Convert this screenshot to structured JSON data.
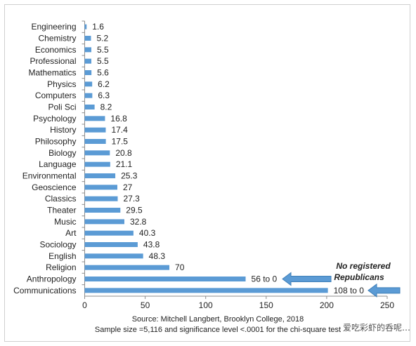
{
  "chart_data": {
    "type": "bar",
    "orientation": "horizontal",
    "categories": [
      "Engineering",
      "Chemistry",
      "Economics",
      "Professional",
      "Mathematics",
      "Physics",
      "Computers",
      "Poli Sci",
      "Psychology",
      "History",
      "Philosophy",
      "Biology",
      "Language",
      "Environmental",
      "Geoscience",
      "Classics",
      "Theater",
      "Music",
      "Art",
      "Sociology",
      "English",
      "Religion",
      "Anthropology",
      "Communications"
    ],
    "values": [
      1.6,
      5.2,
      5.5,
      5.5,
      5.6,
      6.2,
      6.3,
      8.2,
      16.8,
      17.4,
      17.5,
      20.8,
      21.1,
      25.3,
      27,
      27.3,
      29.5,
      32.8,
      40.3,
      43.8,
      48.3,
      70,
      133,
      201
    ],
    "data_labels": [
      "1.6",
      "5.2",
      "5.5",
      "5.5",
      "5.6",
      "6.2",
      "6.3",
      "8.2",
      "16.8",
      "17.4",
      "17.5",
      "20.8",
      "21.1",
      "25.3",
      "27",
      "27.3",
      "29.5",
      "32.8",
      "40.3",
      "43.8",
      "48.3",
      "70",
      "56 to 0",
      "108 to 0"
    ],
    "xlim": [
      0,
      250
    ],
    "x_ticks": [
      0,
      50,
      100,
      150,
      200,
      250
    ],
    "bar_color": "#5b9bd5",
    "annotation": {
      "line1": "No registered",
      "line2": "Republicans",
      "arrow_color": "#5b9bd5"
    },
    "source_line1": "Source: Mitchell Langbert, Brooklyn College, 2018",
    "source_line2": "Sample size =5,116 and significance level <.0001 for the chi-square test"
  },
  "watermark": "爱吃彩虾的呑呢…"
}
